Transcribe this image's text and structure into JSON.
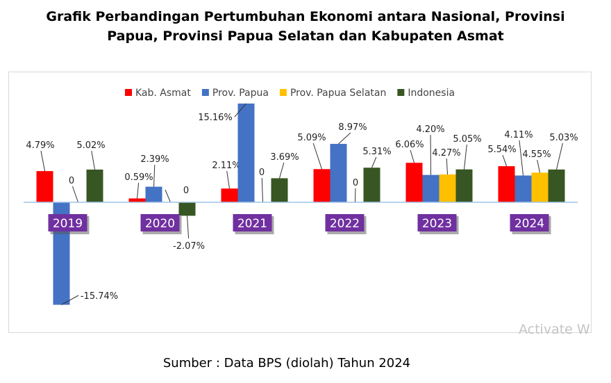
{
  "title_lines": [
    "Grafik Perbandingan Pertumbuhan Ekonomi antara Nasional, Provinsi",
    "Papua, Provinsi Papua Selatan dan Kabupaten Asmat"
  ],
  "source": "Sumber : Data BPS (diolah) Tahun 2024",
  "watermark": "Activate W",
  "chart_data": {
    "type": "bar",
    "categories": [
      "2019",
      "2020",
      "2021",
      "2022",
      "2023",
      "2024"
    ],
    "series": [
      {
        "name": "Kab. Asmat",
        "color": "#ff0000",
        "values": [
          4.79,
          0.59,
          2.11,
          5.09,
          6.06,
          5.54
        ],
        "labels": [
          "4.79%",
          "0.59%",
          "2.11%",
          "5.09%",
          "6.06%",
          "5.54%"
        ]
      },
      {
        "name": "Prov. Papua",
        "color": "#4472c4",
        "values": [
          -15.74,
          2.39,
          15.16,
          8.97,
          4.2,
          4.11
        ],
        "labels": [
          "-15.74%",
          "2.39%",
          "15.16%",
          "8.97%",
          "4.20%",
          "4.11%"
        ]
      },
      {
        "name": "Prov. Papua Selatan",
        "color": "#ffc000",
        "values": [
          0,
          0,
          0,
          0,
          4.27,
          4.55
        ],
        "labels": [
          "0",
          "0",
          "0",
          "0",
          "4.27%",
          "4.55%"
        ]
      },
      {
        "name": "Indonesia",
        "color": "#375623",
        "values": [
          5.02,
          -2.07,
          3.69,
          5.31,
          5.05,
          5.03
        ],
        "labels": [
          "5.02%",
          "-2.07%",
          "3.69%",
          "5.31%",
          "5.05%",
          "5.03%"
        ]
      }
    ],
    "category_label_color": "#7030a0",
    "legend_position": "top",
    "grid": false,
    "xlabel": "",
    "ylabel": ""
  }
}
